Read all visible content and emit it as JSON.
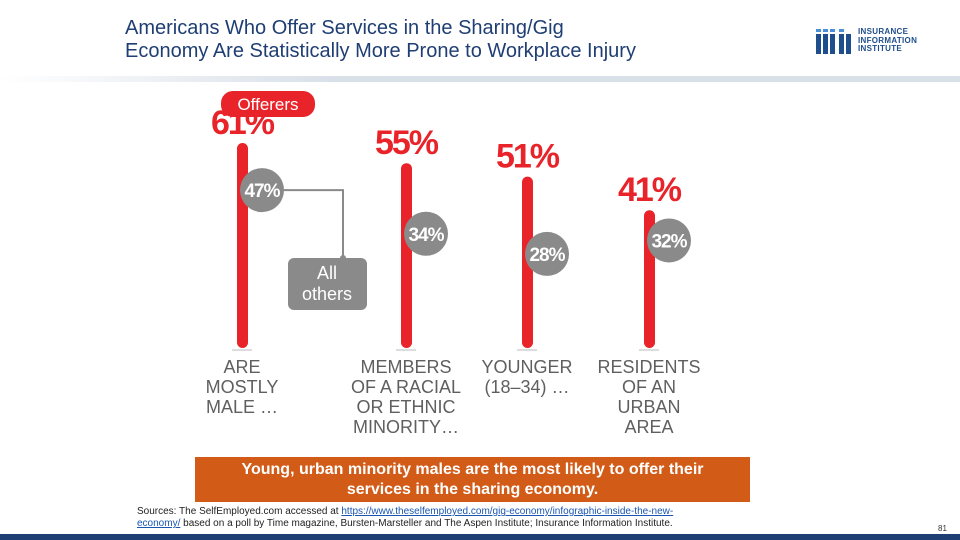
{
  "header": {
    "title_line1": "Americans Who Offer Services in the Sharing/Gig",
    "title_line2": "Economy Are Statistically More Prone to Workplace Injury"
  },
  "logo": {
    "line1": "INSURANCE",
    "line2": "INFORMATION",
    "line3": "INSTITUTE"
  },
  "colors": {
    "title": "#1f3e73",
    "bar_red": "#e8232a",
    "others_gray": "#8a8a8a",
    "callout_bg": "#d25b17",
    "label_gray": "#5f5f5f"
  },
  "chart_data": {
    "type": "bar",
    "title": "",
    "series": [
      {
        "name": "Offerers",
        "values": [
          61,
          55,
          51,
          41
        ]
      },
      {
        "name": "All others",
        "values": [
          47,
          34,
          28,
          32
        ]
      }
    ],
    "categories": [
      [
        "ARE",
        "MOSTLY",
        "MALE …"
      ],
      [
        "MEMBERS",
        "OF A RACIAL",
        "OR ETHNIC",
        "MINORITY…"
      ],
      [
        "YOUNGER",
        "(18–34) …"
      ],
      [
        "RESIDENTS",
        "OF AN",
        "URBAN",
        "AREA"
      ]
    ],
    "value_labels_offerers": [
      "61%",
      "55%",
      "51%",
      "41%"
    ],
    "value_labels_others": [
      "47%",
      "34%",
      "28%",
      "32%"
    ],
    "legend_offerers": "Offerers",
    "legend_others": [
      "All",
      "others"
    ],
    "ylim": [
      0,
      70
    ],
    "xlabel": "",
    "ylabel": ""
  },
  "callout": {
    "line1": "Young, urban minority males are the most likely to offer their",
    "line2": "services in the sharing economy."
  },
  "sources": {
    "prefix": "Sources: The SelfEmployed.com accessed at ",
    "link_line1": "https://www.theselfemployed.com/gig-economy/infographic-inside-the-new-",
    "link_line2": "economy/",
    "suffix": " based on a poll by Time magazine, Bursten-Marsteller and The Aspen Institute; Insurance Information Institute."
  },
  "slide_number": "81"
}
